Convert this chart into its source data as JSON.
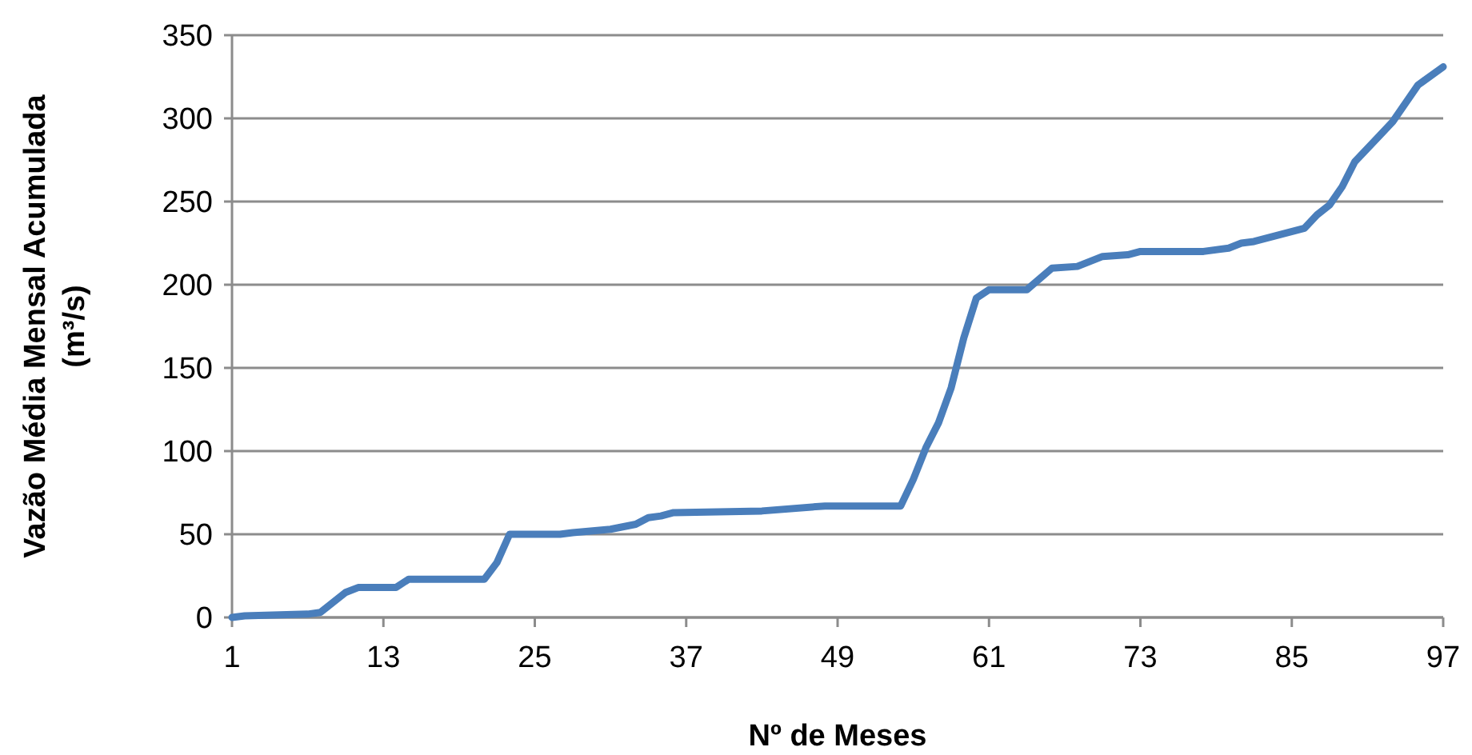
{
  "chart_data": {
    "type": "line",
    "xlabel": "Nº de Meses",
    "ylabel": "Vazão Média Mensal Acumulada (m³/s)",
    "xlim": [
      1,
      97
    ],
    "xticks": [
      1,
      13,
      25,
      37,
      49,
      61,
      73,
      85,
      97
    ],
    "ylim": [
      0,
      350
    ],
    "yticks": [
      0,
      50,
      100,
      150,
      200,
      250,
      300,
      350
    ],
    "grid": "y",
    "line_style": "solid",
    "series": [
      {
        "color": "#4a7ebb",
        "x": [
          1,
          2,
          7,
          8,
          10,
          11,
          14,
          15,
          21,
          22,
          23,
          27,
          28,
          31,
          33,
          34,
          35,
          36,
          43,
          48,
          54,
          55,
          56,
          57,
          58,
          59,
          60,
          61,
          64,
          66,
          68,
          70,
          72,
          73,
          78,
          80,
          81,
          82,
          86,
          87,
          88,
          89,
          90,
          92,
          93,
          95,
          97
        ],
        "values": [
          0,
          1,
          2,
          3,
          15,
          18,
          18,
          23,
          23,
          33,
          50,
          50,
          51,
          53,
          56,
          60,
          61,
          63,
          64,
          67,
          67,
          83,
          102,
          117,
          138,
          168,
          192,
          197,
          197,
          210,
          211,
          217,
          218,
          220,
          220,
          222,
          225,
          226,
          234,
          242,
          248,
          259,
          274,
          290,
          298,
          320,
          331
        ]
      }
    ]
  }
}
